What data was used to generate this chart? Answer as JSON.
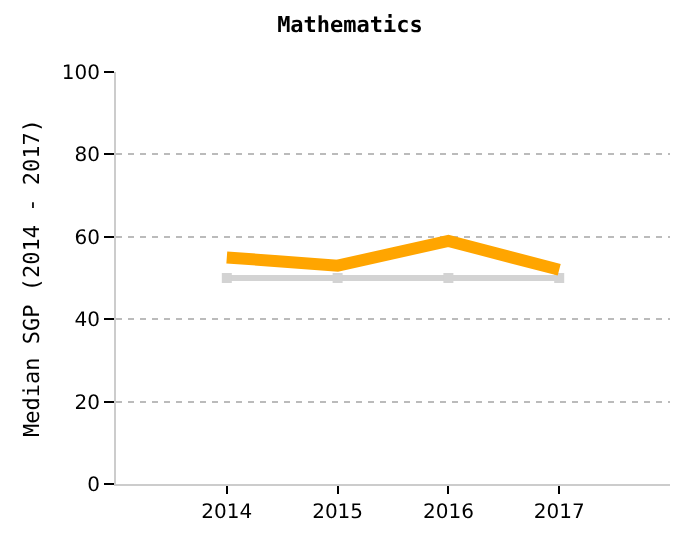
{
  "chart_data": {
    "type": "line",
    "title": "Mathematics",
    "ylabel": "Median SGP (2014 - 2017)",
    "categories": [
      "2014",
      "2015",
      "2016",
      "2017"
    ],
    "series": [
      {
        "color": "#d3d3d3",
        "values": [
          50,
          50,
          50,
          50
        ],
        "marker": "square"
      },
      {
        "color": "#ffa500",
        "values": [
          55,
          53,
          59,
          52
        ],
        "marker": "none"
      }
    ],
    "ylim": [
      0,
      100
    ],
    "yticks": [
      0,
      20,
      40,
      60,
      80,
      100
    ],
    "grid": "y"
  }
}
